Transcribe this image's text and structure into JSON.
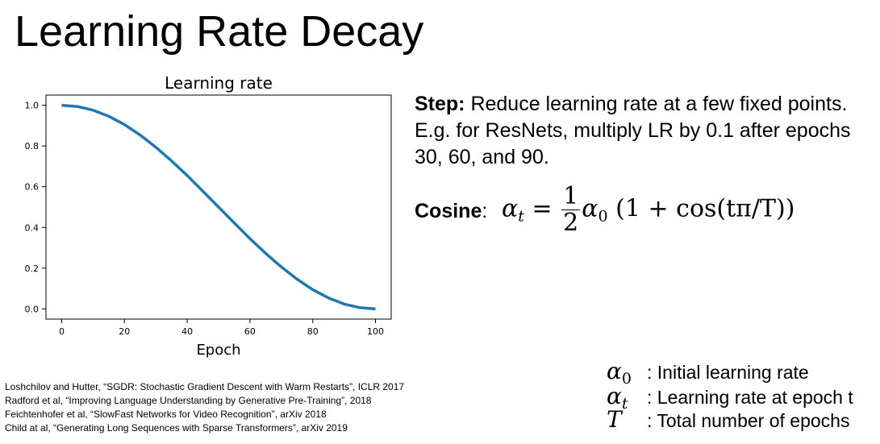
{
  "slide": {
    "title": "Learning Rate Decay"
  },
  "step": {
    "label": "Step:",
    "text": " Reduce learning rate at a few fixed points. E.g. for ResNets, multiply LR by 0.1 after epochs 30, 60, and 90."
  },
  "cosine": {
    "label": "Cosine",
    "colon": ":",
    "formula": {
      "lhs": "α",
      "lhs_sub": "t",
      "equals": "=",
      "frac_num": "1",
      "frac_den": "2",
      "alpha": "α",
      "alpha_sub": "0",
      "rest": "(1 + cos(tπ/T))"
    }
  },
  "legend": [
    {
      "symbol": "α",
      "sub": "0",
      "text": ": Initial learning rate"
    },
    {
      "symbol": "α",
      "sub": "t",
      "text": ": Learning rate at epoch t"
    },
    {
      "symbol": "T",
      "sub": "",
      "text": ": Total number of epochs"
    }
  ],
  "references": [
    "Loshchilov and Hutter, “SGDR: Stochastic Gradient Descent with Warm Restarts”, ICLR 2017",
    "Radford et al, “Improving Language Understanding by Generative Pre-Training”, 2018",
    "Feichtenhofer et al, “SlowFast Networks for Video Recognition”, arXiv 2018",
    "Child at al, “Generating Long Sequences with Sparse Transformers”, arXiv 2019"
  ],
  "chart_data": {
    "type": "line",
    "title": "Learning rate",
    "xlabel": "Epoch",
    "ylabel": "",
    "xlim": [
      -5,
      105
    ],
    "ylim": [
      -0.05,
      1.05
    ],
    "xticks": [
      0,
      20,
      40,
      60,
      80,
      100
    ],
    "yticks": [
      0.0,
      0.2,
      0.4,
      0.6,
      0.8,
      1.0
    ],
    "grid": false,
    "line_color": "#1f77b4",
    "series": [
      {
        "x": [
          0,
          5,
          10,
          15,
          20,
          25,
          30,
          35,
          40,
          45,
          50,
          55,
          60,
          65,
          70,
          75,
          80,
          85,
          90,
          95,
          100
        ],
        "values": [
          1.0,
          0.994,
          0.976,
          0.946,
          0.905,
          0.854,
          0.794,
          0.727,
          0.655,
          0.578,
          0.5,
          0.422,
          0.345,
          0.273,
          0.206,
          0.146,
          0.095,
          0.054,
          0.024,
          0.006,
          0.0
        ]
      }
    ]
  }
}
